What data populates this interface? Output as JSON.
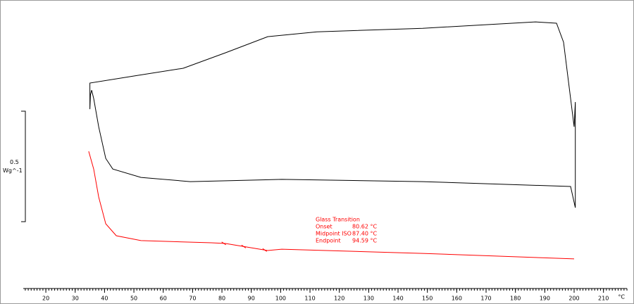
{
  "chart_data": {
    "type": "line",
    "xlim": [
      12.3,
      218
    ],
    "ylim": [
      0,
      1.306
    ],
    "xticks": [
      20,
      30,
      40,
      50,
      60,
      70,
      80,
      90,
      100,
      110,
      120,
      130,
      140,
      150,
      160,
      170,
      180,
      190,
      200,
      210
    ],
    "x_unit": "°C",
    "scale_bar": 0.5,
    "scale_unit": "Wg^-1",
    "series": [
      {
        "color": "#000000",
        "x": [
          35.0,
          35.0,
          50,
          66.8,
          81.2,
          95.6,
          112.4,
          148.4,
          186.8,
          194,
          196.4,
          198.8,
          200,
          200.4,
          200.4,
          198.8,
          148.4,
          100.4,
          69.2,
          52.4,
          42.8,
          40.4,
          38,
          36.3,
          35.6,
          35.2,
          35.0
        ],
        "values": [
          0.812,
          0.93,
          0.962,
          0.997,
          1.067,
          1.14,
          1.162,
          1.178,
          1.207,
          1.201,
          1.115,
          0.86,
          0.732,
          0.844,
          0.366,
          0.462,
          0.484,
          0.494,
          0.484,
          0.503,
          0.541,
          0.589,
          0.732,
          0.86,
          0.898,
          0.876,
          0.812
        ]
      },
      {
        "color": "#ff0000",
        "x": [
          34.6,
          36.3,
          38,
          40.4,
          44,
          52.4,
          76.4,
          81.2,
          88.4,
          95.6,
          100.4,
          148.4,
          200
        ],
        "values": [
          0.621,
          0.541,
          0.414,
          0.293,
          0.239,
          0.217,
          0.207,
          0.204,
          0.188,
          0.172,
          0.178,
          0.159,
          0.134
        ]
      }
    ],
    "annotation": {
      "title": "Glass Transition",
      "color": "#ff0000",
      "rows": [
        {
          "label": "Onset",
          "value": 80.62,
          "value_label": "80.62 °C"
        },
        {
          "label": "Midpoint ISO",
          "value": 87.4,
          "value_label": "87.40 °C"
        },
        {
          "label": "Endpoint",
          "value": 94.59,
          "value_label": "94.59 °C"
        }
      ]
    }
  }
}
